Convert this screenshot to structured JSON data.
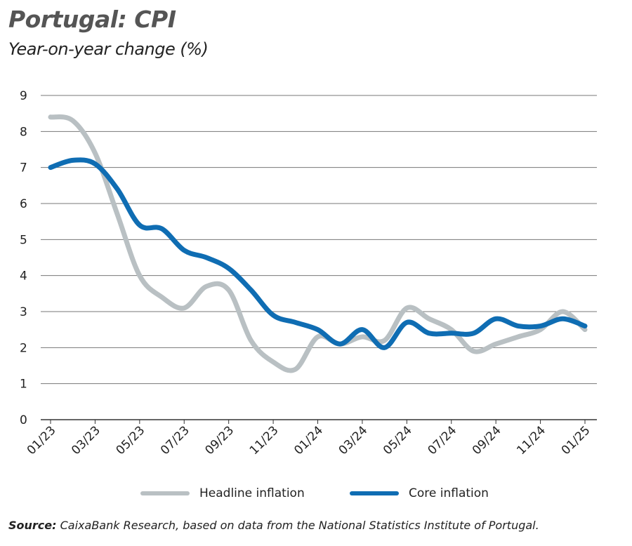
{
  "chart_data": {
    "type": "line",
    "title": "Portugal: CPI",
    "subtitle": "Year-on-year change (%)",
    "xlabel": "",
    "ylabel": "",
    "ylim": [
      0,
      9
    ],
    "yticks": [
      "0",
      "1",
      "2",
      "3",
      "4",
      "5",
      "6",
      "7",
      "8",
      "9"
    ],
    "grid": true,
    "legend_position": "bottom",
    "x": [
      "01/23",
      "02/23",
      "03/23",
      "04/23",
      "05/23",
      "06/23",
      "07/23",
      "08/23",
      "09/23",
      "10/23",
      "11/23",
      "12/23",
      "01/24",
      "02/24",
      "03/24",
      "04/24",
      "05/24",
      "06/24",
      "07/24",
      "08/24",
      "09/24",
      "10/24",
      "11/24",
      "12/24",
      "01/25"
    ],
    "xtick_labels": [
      "01/23",
      "03/23",
      "05/23",
      "07/23",
      "09/23",
      "11/23",
      "01/24",
      "03/24",
      "05/24",
      "07/24",
      "09/24",
      "11/24",
      "01/25"
    ],
    "series": [
      {
        "name": "Headline inflation",
        "color": "#b9c0c3",
        "values": [
          8.4,
          8.3,
          7.4,
          5.7,
          4.0,
          3.4,
          3.1,
          3.7,
          3.6,
          2.2,
          1.6,
          1.4,
          2.3,
          2.1,
          2.3,
          2.2,
          3.1,
          2.8,
          2.5,
          1.9,
          2.1,
          2.3,
          2.5,
          3.0,
          2.5
        ]
      },
      {
        "name": "Core inflation",
        "color": "#0f6db3",
        "values": [
          7.0,
          7.2,
          7.1,
          6.4,
          5.4,
          5.3,
          4.7,
          4.5,
          4.2,
          3.6,
          2.9,
          2.7,
          2.5,
          2.1,
          2.5,
          2.0,
          2.7,
          2.4,
          2.4,
          2.4,
          2.8,
          2.6,
          2.6,
          2.8,
          2.6
        ]
      }
    ]
  },
  "source": {
    "label": "Source:",
    "text": " CaixaBank Research, based on data from the National Statistics Institute of Portugal."
  }
}
